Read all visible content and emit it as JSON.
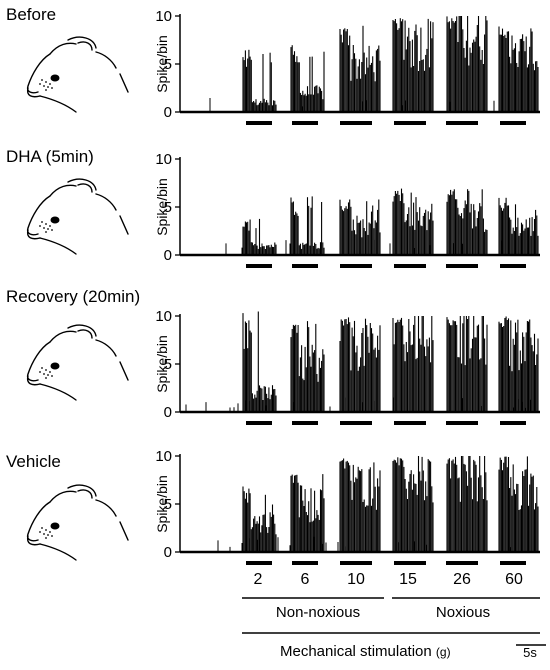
{
  "chart_data": {
    "type": "bar",
    "ylabel": "Spike/bin",
    "ylim": [
      0,
      10
    ],
    "yticks": [
      0,
      5,
      10
    ],
    "stimulus_forces": [
      "2",
      "6",
      "10",
      "15",
      "26",
      "60"
    ],
    "force_groups": [
      {
        "label": "Non-noxious",
        "forces": [
          "2",
          "6",
          "10"
        ]
      },
      {
        "label": "Noxious",
        "forces": [
          "15",
          "26",
          "60"
        ]
      }
    ],
    "xlabel": "Mechanical stimulation",
    "xlabel_unit": "(g)",
    "scale_bar": "5s",
    "panels": [
      {
        "name": "Before",
        "peak_spikes": [
          7,
          7,
          9,
          10,
          10,
          9
        ],
        "mean_spikes": [
          1,
          2,
          5,
          7,
          8,
          6
        ]
      },
      {
        "name": "DHA (5min)",
        "peak_spikes": [
          4,
          7,
          6,
          7,
          7,
          6
        ],
        "mean_spikes": [
          1,
          1,
          3,
          4,
          4,
          3
        ]
      },
      {
        "name": "Recovery (20min)",
        "peak_spikes": [
          11,
          10,
          10,
          10,
          10,
          10
        ],
        "mean_spikes": [
          2,
          5,
          7,
          8,
          8,
          7
        ]
      },
      {
        "name": "Vehicle",
        "peak_spikes": [
          7,
          9,
          10,
          10,
          10,
          10
        ],
        "mean_spikes": [
          3,
          5,
          7,
          8,
          8,
          7
        ]
      }
    ]
  }
}
